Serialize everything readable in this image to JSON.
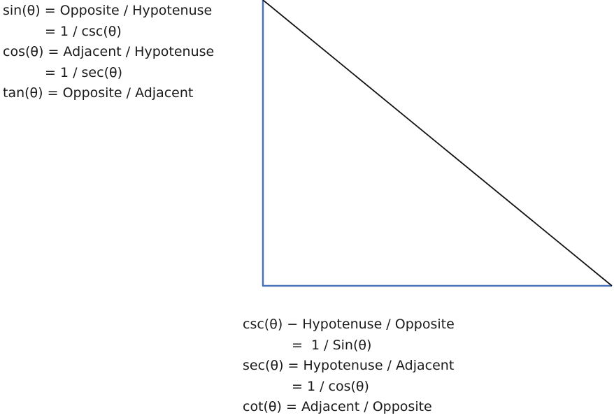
{
  "top_formulas": [
    {
      "text": "sin(θ) = Opposite / Hypotenuse",
      "indent": false
    },
    {
      "text": "= 1 / csc(θ)",
      "indent": true
    },
    {
      "text": "cos(θ) = Adjacent / Hypotenuse",
      "indent": false
    },
    {
      "text": "= 1 / sec(θ)",
      "indent": true
    },
    {
      "text": "tan(θ) = Opposite / Adjacent",
      "indent": false
    }
  ],
  "bottom_formulas": [
    {
      "text": "csc(θ) − Hypotenuse / Opposite",
      "indent": false
    },
    {
      "text": "=  1 / Sin(θ)",
      "indent": true
    },
    {
      "text": "sec(θ) = Hypotenuse / Adjacent",
      "indent": false
    },
    {
      "text": "= 1 / cos(θ)",
      "indent": true
    },
    {
      "text": "cot(θ) = Adjacent / Opposite",
      "indent": false
    }
  ],
  "colors": {
    "legs": "#4a72b8",
    "hypotenuse": "#111111",
    "text": "#1a1a1a"
  }
}
